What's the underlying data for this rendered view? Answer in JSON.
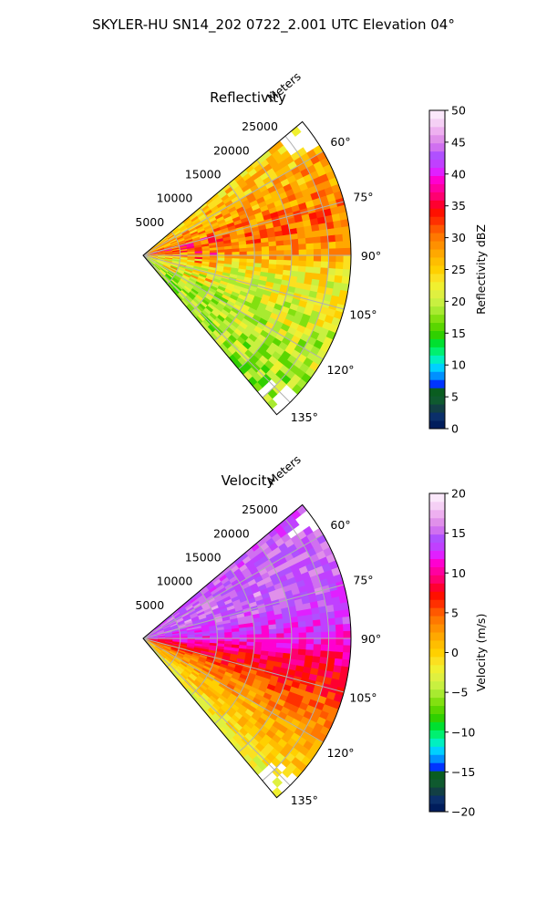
{
  "figure": {
    "suptitle": "SKYLER-HU  SN14_202  0722_2.001 UTC Elevation 04°"
  },
  "chart_data": [
    {
      "type": "heatmap",
      "title": "Reflectivity",
      "range_label": "Meters",
      "range_ticks": [
        "5000",
        "10000",
        "15000",
        "20000",
        "25000"
      ],
      "range_values": [
        5000,
        10000,
        15000,
        20000,
        25000
      ],
      "range_max": 28000,
      "azimuth_range_deg": [
        50,
        140
      ],
      "azimuth_ticks": [
        "60°",
        "75°",
        "90°",
        "105°",
        "120°",
        "135°"
      ],
      "azimuth_values": [
        60,
        75,
        90,
        105,
        120,
        135
      ],
      "grid": true,
      "colorbar": {
        "label": "Reflectivity dBZ",
        "range": [
          0,
          50
        ],
        "ticks": [
          "0",
          "5",
          "10",
          "15",
          "20",
          "25",
          "30",
          "35",
          "40",
          "45",
          "50"
        ],
        "tick_values": [
          0,
          5,
          10,
          15,
          20,
          25,
          30,
          35,
          40,
          45,
          50
        ],
        "colors": [
          "#001d5c",
          "#0b2f6a",
          "#123f44",
          "#0f5a2f",
          "#0a5d20",
          "#0034ff",
          "#0090ff",
          "#00d0ff",
          "#00f0c0",
          "#00f070",
          "#00e030",
          "#30d000",
          "#5ad600",
          "#82e010",
          "#a8ea30",
          "#c8f040",
          "#dff040",
          "#f0f030",
          "#fbe020",
          "#ffd000",
          "#ffbe00",
          "#ffa800",
          "#ff9000",
          "#ff7800",
          "#ff5800",
          "#ff3000",
          "#ff1000",
          "#ff0030",
          "#ff0070",
          "#ff00a0",
          "#ff00d0",
          "#e020ff",
          "#c040ff",
          "#b050ff",
          "#d070f0",
          "#e090ea",
          "#eeb0f0",
          "#f5d0f5",
          "#fbe8fb"
        ]
      },
      "field_profile": [
        {
          "az": 50,
          "v": 24
        },
        {
          "az": 60,
          "v": 27
        },
        {
          "az": 68,
          "v": 28
        },
        {
          "az": 75,
          "v": 30
        },
        {
          "az": 80,
          "v": 31
        },
        {
          "az": 85,
          "v": 29
        },
        {
          "az": 90,
          "v": 28
        },
        {
          "az": 95,
          "v": 24
        },
        {
          "az": 100,
          "v": 22
        },
        {
          "az": 105,
          "v": 22
        },
        {
          "az": 110,
          "v": 21
        },
        {
          "az": 120,
          "v": 20
        },
        {
          "az": 130,
          "v": 19
        },
        {
          "az": 140,
          "v": 18
        }
      ]
    },
    {
      "type": "heatmap",
      "title": "Velocity",
      "range_label": "Meters",
      "range_ticks": [
        "5000",
        "10000",
        "15000",
        "20000",
        "25000"
      ],
      "range_values": [
        5000,
        10000,
        15000,
        20000,
        25000
      ],
      "range_max": 28000,
      "azimuth_range_deg": [
        50,
        140
      ],
      "azimuth_ticks": [
        "60°",
        "75°",
        "90°",
        "105°",
        "120°",
        "135°"
      ],
      "azimuth_values": [
        60,
        75,
        90,
        105,
        120,
        135
      ],
      "grid": true,
      "colorbar": {
        "label": "Velocity (m/s)",
        "range": [
          -20,
          20
        ],
        "ticks": [
          "−20",
          "−15",
          "−10",
          "−5",
          "0",
          "5",
          "10",
          "15",
          "20"
        ],
        "tick_values": [
          -20,
          -15,
          -10,
          -5,
          0,
          5,
          10,
          15,
          20
        ],
        "colors": [
          "#001d5c",
          "#0b2f6a",
          "#123f44",
          "#0f5a2f",
          "#0a5d20",
          "#0034ff",
          "#0090ff",
          "#00d0ff",
          "#00f0c0",
          "#00f070",
          "#00e030",
          "#30d000",
          "#5ad600",
          "#82e010",
          "#a8ea30",
          "#c8f040",
          "#dff040",
          "#f0f030",
          "#fbe020",
          "#ffd000",
          "#ffbe00",
          "#ffa800",
          "#ff9000",
          "#ff7800",
          "#ff5800",
          "#ff3000",
          "#ff1000",
          "#ff0030",
          "#ff0070",
          "#ff00a0",
          "#ff00d0",
          "#e020ff",
          "#c040ff",
          "#b050ff",
          "#d070f0",
          "#e090ea",
          "#eeb0f0",
          "#f5d0f5",
          "#fbe8fb"
        ]
      },
      "field_profile": [
        {
          "az": 50,
          "v": 14
        },
        {
          "az": 60,
          "v": 15
        },
        {
          "az": 70,
          "v": 15
        },
        {
          "az": 78,
          "v": 14
        },
        {
          "az": 85,
          "v": 13
        },
        {
          "az": 90,
          "v": 12
        },
        {
          "az": 95,
          "v": 10
        },
        {
          "az": 100,
          "v": 8
        },
        {
          "az": 105,
          "v": 7
        },
        {
          "az": 110,
          "v": 5
        },
        {
          "az": 118,
          "v": 3
        },
        {
          "az": 125,
          "v": 1
        },
        {
          "az": 132,
          "v": 0
        },
        {
          "az": 140,
          "v": -3
        }
      ]
    }
  ]
}
